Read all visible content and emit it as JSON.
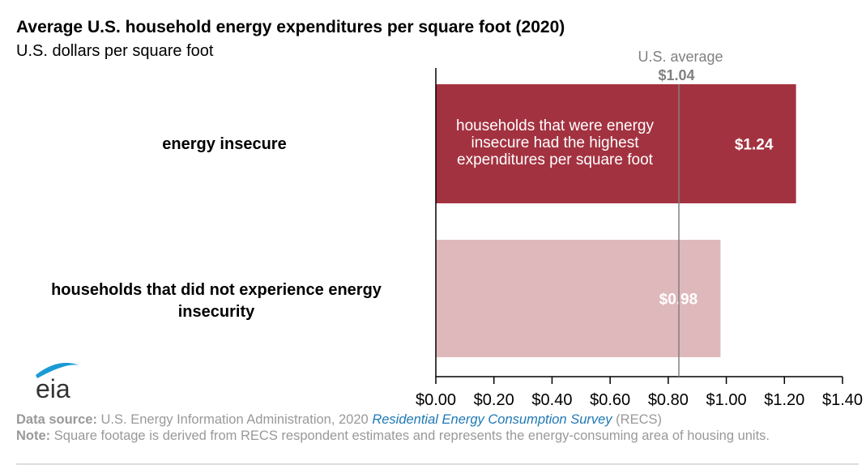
{
  "title": "Average U.S. household energy expenditures per square foot (2020)",
  "subtitle": "U.S. dollars per square foot",
  "chart_data": {
    "type": "bar",
    "orientation": "horizontal",
    "categories": [
      "energy insecure",
      "households that did not experience energy insecurity"
    ],
    "values": [
      1.24,
      0.98
    ],
    "data_labels": [
      "$1.24",
      "$0.98"
    ],
    "colors": [
      "#a33240",
      "#dfb8bc"
    ],
    "xlim": [
      0,
      1.4
    ],
    "xticks": [
      0,
      0.2,
      0.4,
      0.6,
      0.8,
      1.0,
      1.2,
      1.4
    ],
    "xtick_labels": [
      "$0.00",
      "$0.20",
      "$0.40",
      "$0.60",
      "$0.80",
      "$1.00",
      "$1.20",
      "$1.40"
    ],
    "grid": false,
    "reference_line": {
      "label": "U.S. average",
      "value_label": "$1.04",
      "color": "#808080"
    },
    "annotation": "households that were energy insecure had the highest expenditures per square foot"
  },
  "footer": {
    "source_label": "Data source:",
    "source_text": "U.S. Energy Information Administration, 2020",
    "source_link": "Residential Energy Consumption Survey",
    "source_suffix": "(RECS)",
    "note_label": "Note:",
    "note_text": "Square footage is derived from RECS respondent estimates and represents the energy-consuming area of housing units."
  },
  "logo": "eia"
}
